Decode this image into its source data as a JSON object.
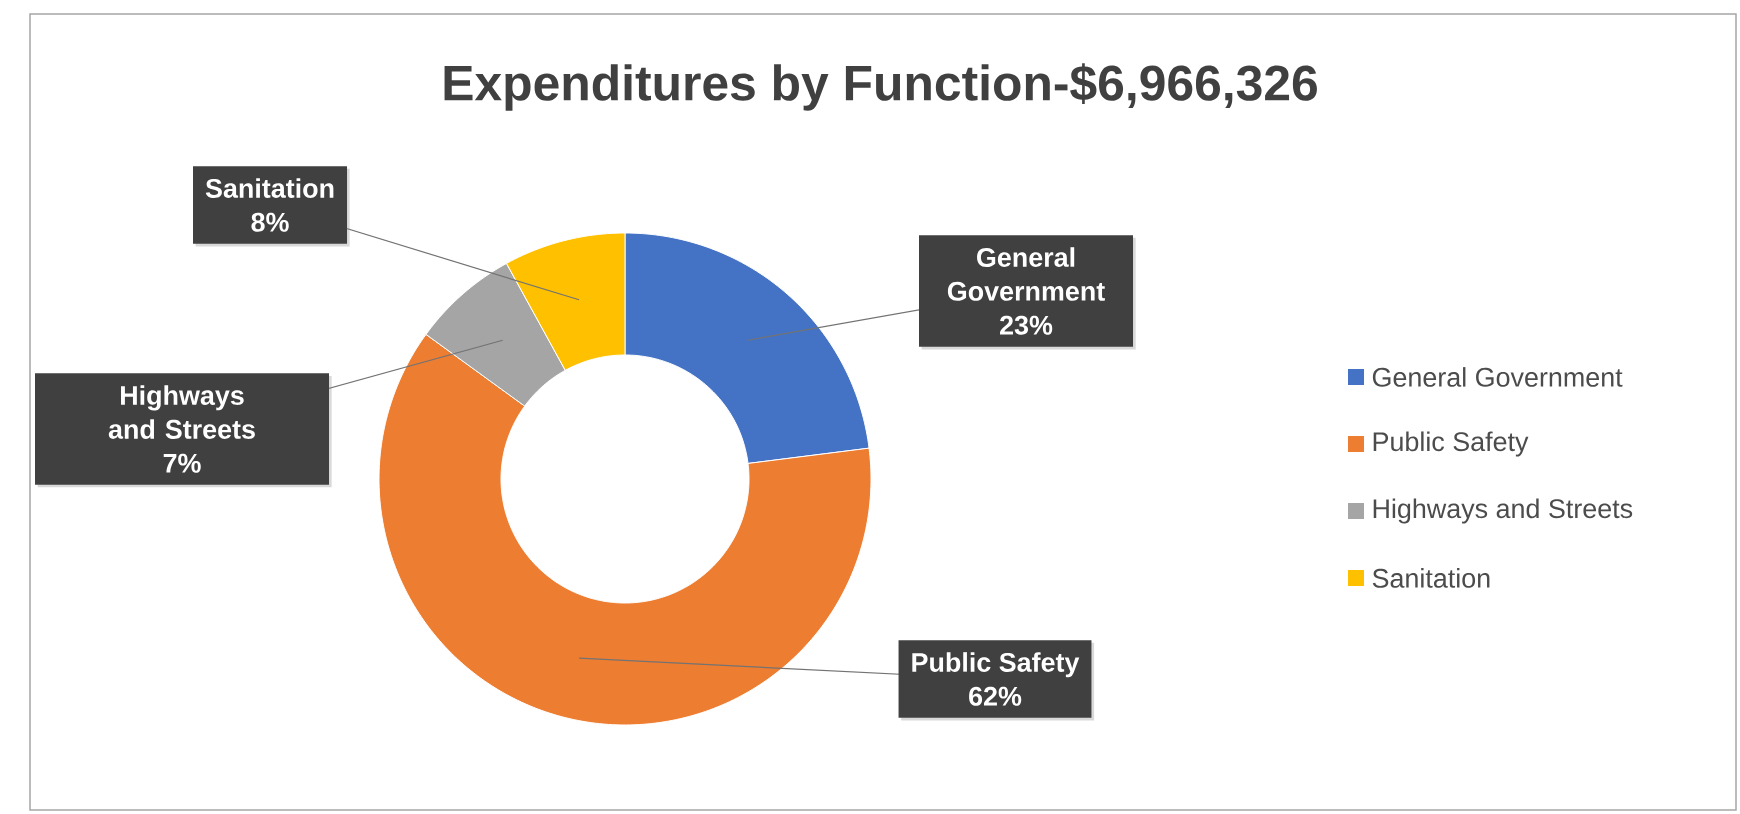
{
  "chart_data": {
    "type": "donut",
    "title": "Expenditures by Function-$6,966,326",
    "categories": [
      "General Government",
      "Public Safety",
      "Highways and Streets",
      "Sanitation"
    ],
    "values": [
      23,
      62,
      7,
      8
    ],
    "value_labels": [
      "23%",
      "62%",
      "7%",
      "8%"
    ],
    "colors": [
      "#4472c4",
      "#ed7d31",
      "#a5a5a5",
      "#ffc000"
    ],
    "legend": "right"
  }
}
